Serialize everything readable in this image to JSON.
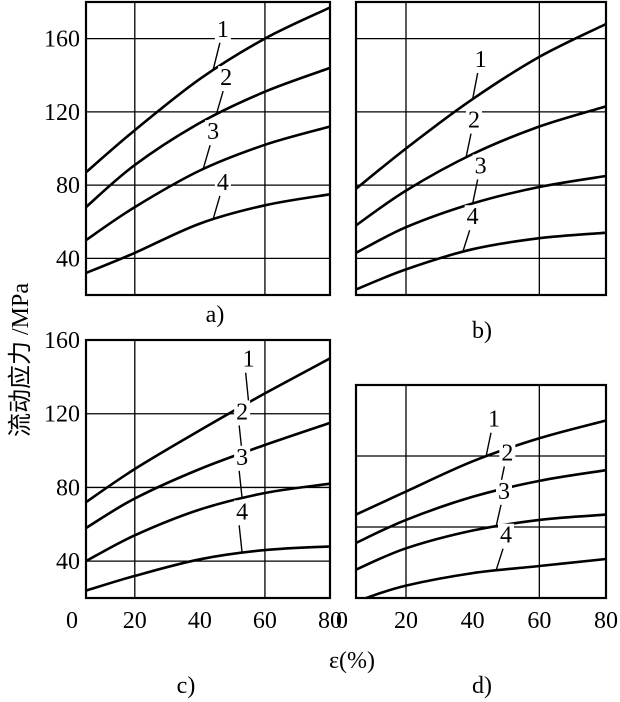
{
  "y_axis_label": "流动应力 /MPa",
  "x_axis_label": "ε(%)",
  "chart_data": [
    {
      "type": "line",
      "panel_label": "a)",
      "xlim": [
        5,
        80
      ],
      "ylim": [
        20,
        180
      ],
      "xgrid": [
        20,
        60
      ],
      "ygrid": [
        40,
        80,
        120,
        160
      ],
      "yticks": [
        "40",
        "80",
        "120",
        "160"
      ],
      "xticks": [],
      "series": [
        {
          "name": "1",
          "x": [
            5,
            20,
            40,
            60,
            80
          ],
          "y": [
            87,
            110,
            138,
            160,
            177
          ]
        },
        {
          "name": "2",
          "x": [
            5,
            20,
            40,
            60,
            80
          ],
          "y": [
            68,
            91,
            114,
            131,
            144
          ]
        },
        {
          "name": "3",
          "x": [
            5,
            20,
            40,
            60,
            80
          ],
          "y": [
            50,
            68,
            88,
            102,
            112
          ]
        },
        {
          "name": "4",
          "x": [
            5,
            20,
            40,
            60,
            80
          ],
          "y": [
            32,
            43,
            59,
            69,
            75
          ]
        }
      ]
    },
    {
      "type": "line",
      "panel_label": "b)",
      "xlim": [
        5,
        80
      ],
      "ylim": [
        20,
        180
      ],
      "xgrid": [
        20,
        60
      ],
      "ygrid": [
        40,
        80,
        120,
        160
      ],
      "yticks": [],
      "xticks": [],
      "series": [
        {
          "name": "1",
          "x": [
            5,
            20,
            40,
            60,
            80
          ],
          "y": [
            78,
            100,
            127,
            150,
            168
          ]
        },
        {
          "name": "2",
          "x": [
            5,
            20,
            40,
            60,
            80
          ],
          "y": [
            58,
            77,
            97,
            112,
            123
          ]
        },
        {
          "name": "3",
          "x": [
            5,
            20,
            40,
            60,
            80
          ],
          "y": [
            43,
            57,
            70,
            79,
            85
          ]
        },
        {
          "name": "4",
          "x": [
            5,
            20,
            40,
            60,
            80
          ],
          "y": [
            23,
            34,
            45,
            51,
            54
          ]
        }
      ]
    },
    {
      "type": "line",
      "panel_label": "c)",
      "xlim": [
        5,
        80
      ],
      "ylim": [
        20,
        160
      ],
      "xgrid": [
        20,
        60
      ],
      "ygrid": [
        40,
        80,
        120,
        160
      ],
      "yticks": [
        "40",
        "80",
        "120",
        "160"
      ],
      "xticks": [
        "0",
        "20",
        "40",
        "60",
        "80"
      ],
      "series": [
        {
          "name": "1",
          "x": [
            5,
            20,
            40,
            60,
            80
          ],
          "y": [
            72,
            90,
            111,
            131,
            150
          ]
        },
        {
          "name": "2",
          "x": [
            5,
            20,
            40,
            60,
            80
          ],
          "y": [
            58,
            74,
            90,
            103,
            115
          ]
        },
        {
          "name": "3",
          "x": [
            5,
            20,
            40,
            60,
            80
          ],
          "y": [
            40,
            54,
            68,
            77,
            82
          ]
        },
        {
          "name": "4",
          "x": [
            5,
            20,
            40,
            60,
            80
          ],
          "y": [
            24,
            32,
            41,
            46,
            48
          ]
        }
      ]
    },
    {
      "type": "line",
      "panel_label": "d)",
      "xlim": [
        5,
        80
      ],
      "ylim": [
        20,
        140
      ],
      "xgrid": [
        20,
        60
      ],
      "ygrid": [
        60,
        100,
        140
      ],
      "yticks": [],
      "xticks": [
        "0",
        "20",
        "40",
        "60",
        "80"
      ],
      "series": [
        {
          "name": "1",
          "x": [
            5,
            20,
            40,
            60,
            80
          ],
          "y": [
            67,
            80,
            97,
            110,
            120
          ]
        },
        {
          "name": "2",
          "x": [
            5,
            20,
            40,
            60,
            80
          ],
          "y": [
            51,
            64,
            77,
            86,
            92
          ]
        },
        {
          "name": "3",
          "x": [
            5,
            20,
            40,
            60,
            80
          ],
          "y": [
            36,
            48,
            58,
            64,
            67
          ]
        },
        {
          "name": "4",
          "x": [
            8,
            20,
            40,
            60,
            80
          ],
          "y": [
            20,
            27,
            34,
            38,
            42
          ]
        }
      ]
    }
  ]
}
